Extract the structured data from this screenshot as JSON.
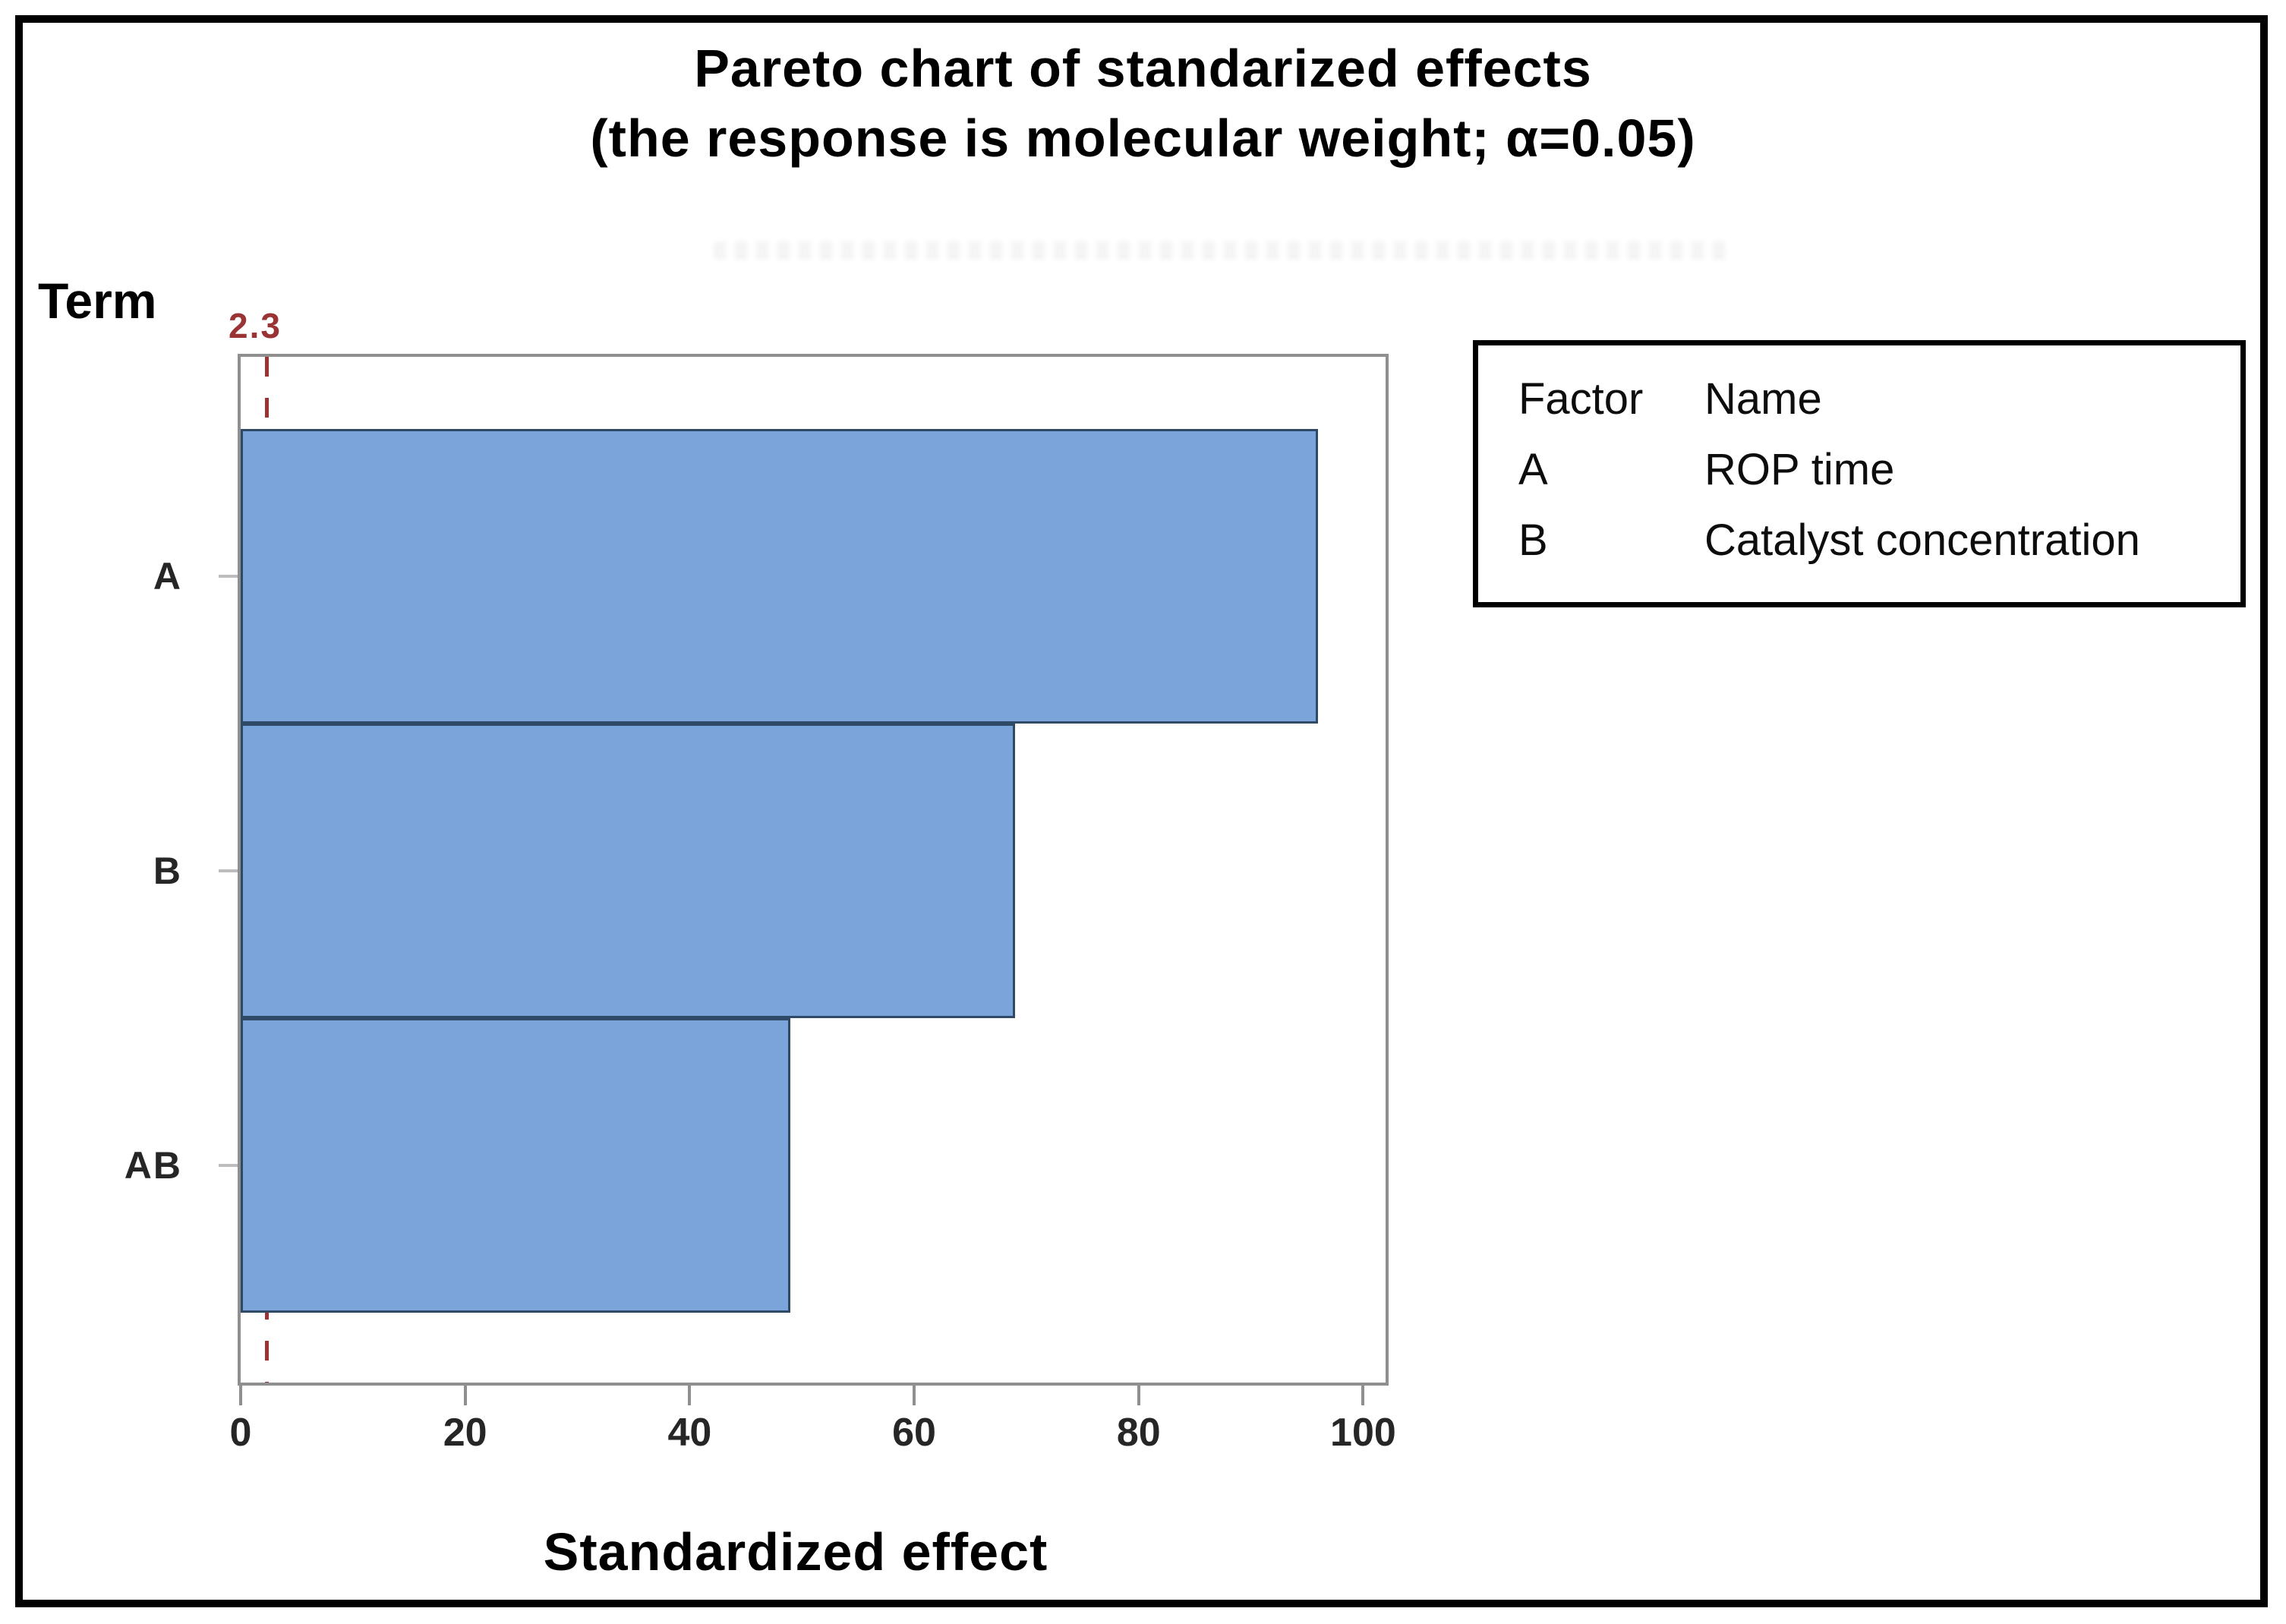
{
  "title": {
    "line1": "Pareto chart of standarized effects",
    "line2": "(the response is molecular weight; α=0.05)"
  },
  "term_label": "Term",
  "colors": {
    "bar_fill": "#7aa4da",
    "bar_border": "#2e4a66",
    "plot_border": "#8f8f8f",
    "reference": "#9a3334",
    "frame": "#000000"
  },
  "chart_data": {
    "type": "bar",
    "orientation": "horizontal",
    "title": "Pareto chart of standarized effects (the response is molecular weight; α=0.05)",
    "categories": [
      "A",
      "B",
      "AB"
    ],
    "values": [
      96,
      69,
      49
    ],
    "xlabel": "Standardized effect",
    "ylabel": "Term",
    "xlim": [
      0,
      102
    ],
    "xticks": [
      0,
      20,
      40,
      60,
      80,
      100
    ],
    "reference_line": {
      "value": 2.3,
      "label": "2.3"
    },
    "grid": false,
    "legend_position": "right"
  },
  "legend": {
    "headers": [
      "Factor",
      "Name"
    ],
    "rows": [
      [
        "A",
        "ROP time"
      ],
      [
        "B",
        "Catalyst concentration"
      ]
    ]
  }
}
